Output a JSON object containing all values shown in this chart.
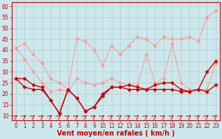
{
  "background_color": "#cde8ec",
  "grid_color": "#aacccc",
  "xlabel": "Vent moyen/en rafales ( km/h )",
  "xlim": [
    -0.5,
    23.5
  ],
  "ylim": [
    8,
    62
  ],
  "yticks": [
    10,
    15,
    20,
    25,
    30,
    35,
    40,
    45,
    50,
    55,
    60
  ],
  "xticks": [
    0,
    1,
    2,
    3,
    4,
    5,
    6,
    7,
    8,
    9,
    10,
    11,
    12,
    13,
    14,
    15,
    16,
    17,
    18,
    19,
    20,
    21,
    22,
    23
  ],
  "series": [
    {
      "name": "rafales_upper",
      "color": "#ff9999",
      "linewidth": 0.8,
      "marker": "D",
      "markersize": 2.5,
      "data": [
        41,
        43,
        38,
        34,
        27,
        25,
        22,
        45,
        44,
        40,
        33,
        42,
        38,
        42,
        46,
        45,
        42,
        46,
        45,
        45,
        46,
        44,
        55,
        58
      ]
    },
    {
      "name": "rafales_lower",
      "color": "#ff9999",
      "linewidth": 0.8,
      "marker": "D",
      "markersize": 2.5,
      "data": [
        41,
        36,
        30,
        25,
        21,
        22,
        21,
        27,
        25,
        24,
        25,
        27,
        25,
        24,
        24,
        38,
        25,
        27,
        43,
        25,
        22,
        22,
        22,
        34
      ]
    },
    {
      "name": "vent_upper",
      "color": "#cc0000",
      "linewidth": 1.0,
      "marker": "D",
      "markersize": 2.5,
      "data": [
        27,
        27,
        24,
        23,
        17,
        11,
        22,
        18,
        12,
        14,
        20,
        23,
        23,
        24,
        23,
        22,
        24,
        25,
        25,
        22,
        21,
        22,
        30,
        35
      ]
    },
    {
      "name": "vent_lower",
      "color": "#cc0000",
      "linewidth": 1.0,
      "marker": "D",
      "markersize": 2.5,
      "data": [
        27,
        23,
        22,
        22,
        17,
        11,
        22,
        18,
        12,
        14,
        19,
        23,
        23,
        22,
        22,
        22,
        22,
        22,
        22,
        21,
        21,
        22,
        21,
        24
      ]
    }
  ],
  "xlabel_color": "#cc0000",
  "xlabel_fontsize": 7,
  "tick_color": "#cc0000",
  "tick_fontsize": 5.5,
  "spine_color": "#cc0000"
}
